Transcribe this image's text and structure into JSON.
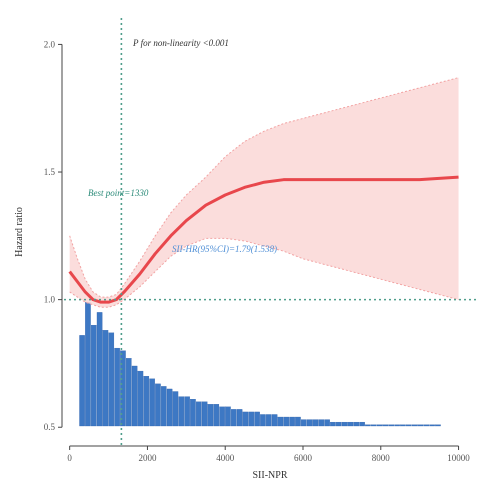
{
  "chart_data": {
    "type": "line",
    "title": "",
    "xlabel": "SII-NPR",
    "ylabel": "Hazard ratio",
    "x_ticks": [
      0,
      2000,
      4000,
      6000,
      8000,
      10000
    ],
    "x_tick_labels": [
      "0",
      "2000",
      "4000",
      "6000",
      "8000",
      "10000"
    ],
    "y_ticks": [
      0.5,
      1.0,
      1.5,
      2.0
    ],
    "y_tick_labels": [
      "0.5",
      "1.0",
      "1.5",
      "2.0"
    ],
    "xlim": [
      -300,
      10500
    ],
    "ylim": [
      0.45,
      2.08
    ],
    "grid": false,
    "reference_line_y": 1.0,
    "reference_line_x": 1330,
    "annotations": {
      "p_nonlinear": "P for non-linearity <0.001",
      "cut_point": "Best point=1330",
      "hr_text": "SII-HR(95%CI)=1.79(1.538)"
    },
    "series": [
      {
        "role": "estimate",
        "x": [
          0,
          200,
          400,
          600,
          800,
          1000,
          1200,
          1400,
          1800,
          2200,
          2600,
          3000,
          3500,
          4000,
          4500,
          5000,
          5500,
          6000,
          7000,
          8000,
          9000,
          10000
        ],
        "y": [
          1.11,
          1.07,
          1.03,
          1.0,
          0.99,
          0.99,
          1.0,
          1.03,
          1.1,
          1.18,
          1.25,
          1.31,
          1.37,
          1.41,
          1.44,
          1.46,
          1.47,
          1.47,
          1.47,
          1.47,
          1.47,
          1.48
        ],
        "lower": [
          1.03,
          1.01,
          0.99,
          0.98,
          0.97,
          0.97,
          0.98,
          1.0,
          1.05,
          1.11,
          1.17,
          1.21,
          1.24,
          1.24,
          1.23,
          1.21,
          1.19,
          1.16,
          1.12,
          1.08,
          1.04,
          1.0
        ],
        "upper": [
          1.25,
          1.16,
          1.08,
          1.03,
          1.01,
          1.01,
          1.02,
          1.06,
          1.15,
          1.25,
          1.34,
          1.41,
          1.48,
          1.56,
          1.62,
          1.66,
          1.69,
          1.71,
          1.75,
          1.79,
          1.83,
          1.87
        ]
      },
      {
        "role": "distribution",
        "x": [
          320,
          470,
          620,
          770,
          920,
          1070,
          1220,
          1370,
          1520,
          1670,
          1820,
          1970,
          2120,
          2270,
          2420,
          2570,
          2720,
          2870,
          3020,
          3170,
          3320,
          3470,
          3620,
          3770,
          3920,
          4070,
          4220,
          4370,
          4520,
          4670,
          4820,
          4970,
          5120,
          5270,
          5420,
          5570,
          5720,
          5870,
          6020,
          6170,
          6320,
          6470,
          6620,
          6770,
          6920,
          7070,
          7220,
          7370,
          7520,
          7670,
          7820,
          7970,
          8120,
          8270,
          8420,
          8570,
          8720,
          8870,
          9020,
          9170,
          9320,
          9470,
          9620,
          9770,
          9920
        ],
        "y": [
          0.86,
          0.99,
          0.9,
          0.95,
          0.88,
          0.87,
          0.81,
          0.8,
          0.77,
          0.74,
          0.72,
          0.7,
          0.69,
          0.67,
          0.66,
          0.65,
          0.64,
          0.62,
          0.62,
          0.61,
          0.6,
          0.6,
          0.59,
          0.59,
          0.58,
          0.58,
          0.57,
          0.57,
          0.56,
          0.56,
          0.56,
          0.55,
          0.55,
          0.55,
          0.54,
          0.54,
          0.54,
          0.54,
          0.53,
          0.53,
          0.53,
          0.53,
          0.53,
          0.52,
          0.52,
          0.52,
          0.52,
          0.52,
          0.52,
          0.51,
          0.51,
          0.51,
          0.51,
          0.51,
          0.51,
          0.51,
          0.51,
          0.51,
          0.51,
          0.51,
          0.51,
          0.51,
          0.5,
          0.5,
          0.5
        ]
      }
    ],
    "colors": {
      "line": "#e8474c",
      "band": "#fbd9d8",
      "band_edge": "#f2a3a3",
      "bars": "#3d78c4",
      "bar_edge": "#2d5fa8",
      "ref_line": "#4f9e8c",
      "cut_text": "#2a8a78",
      "hr_text": "#4f8fd6"
    }
  }
}
